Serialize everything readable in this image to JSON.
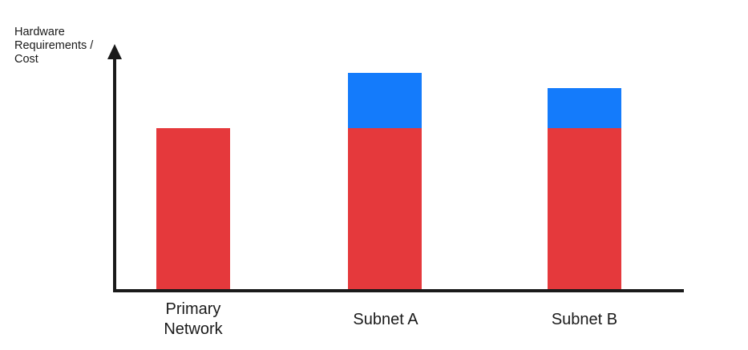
{
  "chart_data": {
    "type": "bar",
    "stacked": true,
    "title": "",
    "xlabel": "",
    "ylabel": "Hardware Requirements / Cost",
    "categories": [
      "Primary Network",
      "Subnet A",
      "Subnet B"
    ],
    "series": [
      {
        "name": "red",
        "color": "#E5393C",
        "values": [
          201,
          201,
          201
        ]
      },
      {
        "name": "blue",
        "color": "#147BFB",
        "values": [
          0,
          69,
          50
        ]
      }
    ],
    "value_unit": "relative height in px (no numeric y-axis scale shown)",
    "totals": [
      201,
      270,
      251
    ],
    "legend": false,
    "grid": false,
    "axis_arrow": "up"
  },
  "y_axis": {
    "label": "Hardware\nRequirements /\nCost"
  },
  "colors": {
    "bar_red": "#E5393C",
    "bar_blue": "#147BFB",
    "axis": "#1A1A1A",
    "text": "#1A1A1A",
    "background": "#FFFFFF"
  }
}
